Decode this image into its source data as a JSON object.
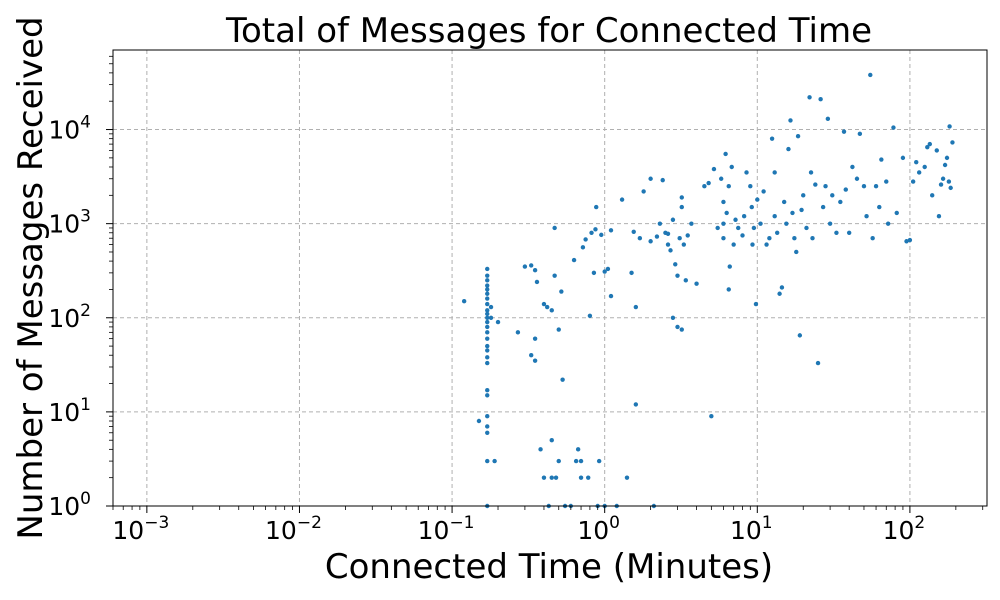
{
  "chart_data": {
    "type": "scatter",
    "title": "Total of Messages for Connected Time",
    "xlabel": "Connected Time (Minutes)",
    "ylabel": "Number of Messages Received",
    "xscale": "log",
    "yscale": "log",
    "xlim": [
      0.0006,
      320
    ],
    "ylim": [
      1,
      70000
    ],
    "grid": true,
    "grid_style": "dashed",
    "marker_color": "#1f77b4",
    "x_ticks": [
      {
        "base": "10",
        "exp": "−3",
        "value": 0.001
      },
      {
        "base": "10",
        "exp": "−2",
        "value": 0.01
      },
      {
        "base": "10",
        "exp": "−1",
        "value": 0.1
      },
      {
        "base": "10",
        "exp": "0",
        "value": 1
      },
      {
        "base": "10",
        "exp": "1",
        "value": 10
      },
      {
        "base": "10",
        "exp": "2",
        "value": 100
      }
    ],
    "y_ticks": [
      {
        "base": "10",
        "exp": "0",
        "value": 1
      },
      {
        "base": "10",
        "exp": "1",
        "value": 10
      },
      {
        "base": "10",
        "exp": "2",
        "value": 100
      },
      {
        "base": "10",
        "exp": "3",
        "value": 1000
      },
      {
        "base": "10",
        "exp": "4",
        "value": 10000
      }
    ],
    "points": [
      [
        0.12,
        150
      ],
      [
        0.15,
        8
      ],
      [
        0.17,
        330
      ],
      [
        0.17,
        280
      ],
      [
        0.17,
        250
      ],
      [
        0.17,
        220
      ],
      [
        0.17,
        200
      ],
      [
        0.17,
        180
      ],
      [
        0.17,
        160
      ],
      [
        0.17,
        140
      ],
      [
        0.17,
        120
      ],
      [
        0.17,
        110
      ],
      [
        0.17,
        100
      ],
      [
        0.17,
        90
      ],
      [
        0.17,
        80
      ],
      [
        0.17,
        70
      ],
      [
        0.17,
        60
      ],
      [
        0.17,
        50
      ],
      [
        0.17,
        45
      ],
      [
        0.17,
        38
      ],
      [
        0.17,
        33
      ],
      [
        0.17,
        17
      ],
      [
        0.17,
        15
      ],
      [
        0.17,
        9
      ],
      [
        0.17,
        7
      ],
      [
        0.17,
        6
      ],
      [
        0.17,
        3
      ],
      [
        0.17,
        1
      ],
      [
        0.18,
        130
      ],
      [
        0.18,
        100
      ],
      [
        0.19,
        3
      ],
      [
        0.2,
        90
      ],
      [
        0.27,
        70
      ],
      [
        0.3,
        350
      ],
      [
        0.33,
        360
      ],
      [
        0.33,
        40
      ],
      [
        0.35,
        320
      ],
      [
        0.35,
        35
      ],
      [
        0.35,
        60
      ],
      [
        0.36,
        240
      ],
      [
        0.38,
        4
      ],
      [
        0.4,
        2
      ],
      [
        0.4,
        140
      ],
      [
        0.42,
        130
      ],
      [
        0.43,
        1
      ],
      [
        0.45,
        2
      ],
      [
        0.45,
        120
      ],
      [
        0.45,
        5
      ],
      [
        0.47,
        280
      ],
      [
        0.47,
        900
      ],
      [
        0.48,
        2
      ],
      [
        0.5,
        3
      ],
      [
        0.5,
        75
      ],
      [
        0.52,
        190
      ],
      [
        0.53,
        22
      ],
      [
        0.55,
        1
      ],
      [
        0.6,
        1
      ],
      [
        0.63,
        410
      ],
      [
        0.65,
        3
      ],
      [
        0.67,
        4
      ],
      [
        0.7,
        3
      ],
      [
        0.7,
        2
      ],
      [
        0.72,
        560
      ],
      [
        0.75,
        680
      ],
      [
        0.78,
        2
      ],
      [
        0.8,
        105
      ],
      [
        0.82,
        800
      ],
      [
        0.85,
        300
      ],
      [
        0.87,
        870
      ],
      [
        0.88,
        1500
      ],
      [
        0.9,
        1
      ],
      [
        0.92,
        3
      ],
      [
        0.95,
        760
      ],
      [
        1.0,
        310
      ],
      [
        1.0,
        1
      ],
      [
        1.05,
        330
      ],
      [
        1.1,
        850
      ],
      [
        1.1,
        170
      ],
      [
        1.2,
        1
      ],
      [
        1.3,
        1800
      ],
      [
        1.4,
        2
      ],
      [
        1.5,
        300
      ],
      [
        1.55,
        820
      ],
      [
        1.6,
        130
      ],
      [
        1.6,
        12
      ],
      [
        1.7,
        700
      ],
      [
        1.8,
        2200
      ],
      [
        2.0,
        3000
      ],
      [
        2.0,
        650
      ],
      [
        2.1,
        1
      ],
      [
        2.2,
        730
      ],
      [
        2.3,
        1000
      ],
      [
        2.4,
        2900
      ],
      [
        2.5,
        800
      ],
      [
        2.6,
        600
      ],
      [
        2.6,
        780
      ],
      [
        2.7,
        520
      ],
      [
        2.8,
        1100
      ],
      [
        2.8,
        100
      ],
      [
        2.9,
        370
      ],
      [
        3.0,
        280
      ],
      [
        3.0,
        80
      ],
      [
        3.1,
        700
      ],
      [
        3.2,
        1900
      ],
      [
        3.2,
        1500
      ],
      [
        3.2,
        75
      ],
      [
        3.3,
        600
      ],
      [
        3.4,
        250
      ],
      [
        3.5,
        750
      ],
      [
        3.7,
        1000
      ],
      [
        4.0,
        230
      ],
      [
        4.5,
        2500
      ],
      [
        4.8,
        2700
      ],
      [
        5.0,
        9
      ],
      [
        5.2,
        3800
      ],
      [
        5.5,
        900
      ],
      [
        5.8,
        3000
      ],
      [
        6.0,
        1000
      ],
      [
        6.0,
        1700
      ],
      [
        6.0,
        700
      ],
      [
        6.2,
        5500
      ],
      [
        6.3,
        1300
      ],
      [
        6.5,
        2500
      ],
      [
        6.5,
        200
      ],
      [
        6.6,
        350
      ],
      [
        6.8,
        4000
      ],
      [
        7.0,
        600
      ],
      [
        7.2,
        1100
      ],
      [
        7.5,
        900
      ],
      [
        8.0,
        750
      ],
      [
        8.2,
        1200
      ],
      [
        8.5,
        3500
      ],
      [
        9.0,
        2500
      ],
      [
        9.2,
        1500
      ],
      [
        9.3,
        600
      ],
      [
        9.5,
        900
      ],
      [
        9.8,
        140
      ],
      [
        10.0,
        1800
      ],
      [
        10.5,
        1000
      ],
      [
        11,
        2200
      ],
      [
        11.5,
        600
      ],
      [
        12,
        700
      ],
      [
        12.5,
        8000
      ],
      [
        13,
        3500
      ],
      [
        13,
        1200
      ],
      [
        13.5,
        800
      ],
      [
        14,
        180
      ],
      [
        14.5,
        210
      ],
      [
        15,
        1700
      ],
      [
        15.5,
        1000
      ],
      [
        16,
        6200
      ],
      [
        16.5,
        12500
      ],
      [
        17,
        1300
      ],
      [
        17.5,
        700
      ],
      [
        18,
        500
      ],
      [
        18.5,
        8500
      ],
      [
        19,
        65
      ],
      [
        19.5,
        1400
      ],
      [
        20,
        2000
      ],
      [
        21,
        900
      ],
      [
        22,
        22000
      ],
      [
        22.5,
        3500
      ],
      [
        23,
        700
      ],
      [
        24,
        2600
      ],
      [
        25,
        33
      ],
      [
        26,
        21000
      ],
      [
        27,
        1500
      ],
      [
        28,
        2500
      ],
      [
        29,
        13000
      ],
      [
        30,
        1000
      ],
      [
        31,
        2000
      ],
      [
        33,
        800
      ],
      [
        35,
        1700
      ],
      [
        37,
        9500
      ],
      [
        38,
        2300
      ],
      [
        40,
        800
      ],
      [
        42,
        4000
      ],
      [
        45,
        3000
      ],
      [
        47,
        9000
      ],
      [
        50,
        2500
      ],
      [
        52,
        1200
      ],
      [
        55,
        38000
      ],
      [
        57,
        700
      ],
      [
        60,
        2500
      ],
      [
        63,
        1500
      ],
      [
        65,
        4800
      ],
      [
        70,
        2800
      ],
      [
        72,
        1000
      ],
      [
        78,
        10500
      ],
      [
        82,
        1300
      ],
      [
        90,
        5000
      ],
      [
        95,
        650
      ],
      [
        100,
        670
      ],
      [
        105,
        2800
      ],
      [
        110,
        4500
      ],
      [
        115,
        3500
      ],
      [
        125,
        4000
      ],
      [
        130,
        6500
      ],
      [
        135,
        7000
      ],
      [
        140,
        2000
      ],
      [
        150,
        6000
      ],
      [
        155,
        1200
      ],
      [
        160,
        2600
      ],
      [
        165,
        3000
      ],
      [
        170,
        4200
      ],
      [
        175,
        5000
      ],
      [
        180,
        2800
      ],
      [
        182,
        10800
      ],
      [
        185,
        2400
      ],
      [
        190,
        7300
      ]
    ]
  }
}
